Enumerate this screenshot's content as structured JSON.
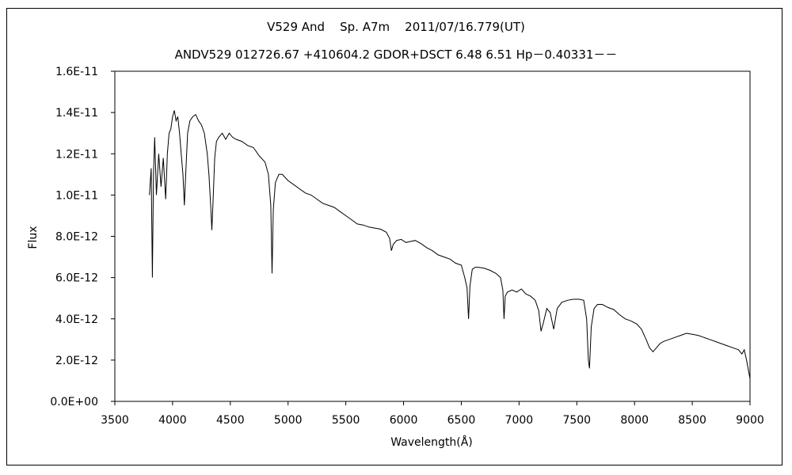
{
  "chart_data": {
    "type": "line",
    "title": "V529 And    Sp. A7m    2011/07/16.779(UT)",
    "subtitle": "ANDV529 012726.67 +410604.2 GDOR+DSCT 6.48 6.51 Hp－0.40331－－",
    "xlabel": "Wavelength(Å)",
    "ylabel": "Flux",
    "xlim": [
      3500,
      9000
    ],
    "ylim": [
      0,
      1.6e-11
    ],
    "x_ticks": [
      "3500",
      "4000",
      "4500",
      "5000",
      "5500",
      "6000",
      "6500",
      "7000",
      "7500",
      "8000",
      "8500",
      "9000"
    ],
    "y_ticks": [
      "0.0E+00",
      "2.0E-12",
      "4.0E-12",
      "6.0E-12",
      "8.0E-12",
      "1.0E-11",
      "1.2E-11",
      "1.4E-11",
      "1.6E-11"
    ],
    "grid": false,
    "legend": "none",
    "series_color": "#000000",
    "series": [
      {
        "x": [
          3800,
          3815,
          3825,
          3835,
          3845,
          3860,
          3880,
          3900,
          3920,
          3940,
          3955,
          3970,
          3985,
          4000,
          4015,
          4030,
          4045,
          4060,
          4075,
          4090,
          4102,
          4115,
          4130,
          4150,
          4175,
          4200,
          4225,
          4250,
          4275,
          4300,
          4315,
          4330,
          4340,
          4350,
          4365,
          4380,
          4400,
          4430,
          4460,
          4490,
          4520,
          4550,
          4600,
          4650,
          4700,
          4750,
          4800,
          4830,
          4850,
          4861,
          4872,
          4890,
          4920,
          4950,
          5000,
          5050,
          5100,
          5150,
          5200,
          5250,
          5300,
          5350,
          5400,
          5450,
          5500,
          5550,
          5600,
          5650,
          5700,
          5750,
          5800,
          5850,
          5880,
          5895,
          5910,
          5940,
          5980,
          6020,
          6060,
          6100,
          6150,
          6200,
          6250,
          6300,
          6350,
          6400,
          6450,
          6500,
          6530,
          6550,
          6563,
          6575,
          6595,
          6620,
          6650,
          6700,
          6750,
          6800,
          6840,
          6860,
          6870,
          6880,
          6900,
          6940,
          6980,
          7020,
          7060,
          7100,
          7140,
          7170,
          7190,
          7210,
          7240,
          7270,
          7300,
          7330,
          7370,
          7420,
          7470,
          7520,
          7560,
          7585,
          7600,
          7610,
          7625,
          7650,
          7680,
          7720,
          7770,
          7820,
          7870,
          7920,
          7970,
          8020,
          8060,
          8100,
          8130,
          8160,
          8190,
          8220,
          8250,
          8300,
          8350,
          8400,
          8450,
          8500,
          8550,
          8600,
          8650,
          8700,
          8750,
          8800,
          8850,
          8900,
          8930,
          8950,
          8970,
          8990,
          9000
        ],
        "y": [
          1e-11,
          1.13e-11,
          6e-12,
          1.1e-11,
          1.28e-11,
          1e-11,
          1.2e-11,
          1.04e-11,
          1.18e-11,
          9.8e-12,
          1.2e-11,
          1.3e-11,
          1.32e-11,
          1.38e-11,
          1.41e-11,
          1.36e-11,
          1.38e-11,
          1.3e-11,
          1.2e-11,
          1.1e-11,
          9.5e-12,
          1.12e-11,
          1.3e-11,
          1.36e-11,
          1.38e-11,
          1.39e-11,
          1.36e-11,
          1.34e-11,
          1.3e-11,
          1.2e-11,
          1.1e-11,
          9.5e-12,
          8.3e-12,
          9.6e-12,
          1.18e-11,
          1.26e-11,
          1.28e-11,
          1.3e-11,
          1.27e-11,
          1.3e-11,
          1.28e-11,
          1.27e-11,
          1.26e-11,
          1.24e-11,
          1.23e-11,
          1.19e-11,
          1.16e-11,
          1.1e-11,
          9.5e-12,
          6.2e-12,
          9.3e-12,
          1.06e-11,
          1.1e-11,
          1.1e-11,
          1.07e-11,
          1.05e-11,
          1.03e-11,
          1.01e-11,
          1e-11,
          9.8e-12,
          9.6e-12,
          9.5e-12,
          9.4e-12,
          9.2e-12,
          9e-12,
          8.8e-12,
          8.6e-12,
          8.55e-12,
          8.45e-12,
          8.4e-12,
          8.35e-12,
          8.2e-12,
          7.9e-12,
          7.3e-12,
          7.6e-12,
          7.8e-12,
          7.85e-12,
          7.7e-12,
          7.75e-12,
          7.8e-12,
          7.65e-12,
          7.45e-12,
          7.3e-12,
          7.1e-12,
          7e-12,
          6.9e-12,
          6.7e-12,
          6.6e-12,
          6e-12,
          5.5e-12,
          4e-12,
          5.6e-12,
          6.4e-12,
          6.5e-12,
          6.5e-12,
          6.45e-12,
          6.35e-12,
          6.2e-12,
          6e-12,
          5.4e-12,
          4e-12,
          5.1e-12,
          5.3e-12,
          5.4e-12,
          5.3e-12,
          5.45e-12,
          5.2e-12,
          5.1e-12,
          4.9e-12,
          4.4e-12,
          3.4e-12,
          3.8e-12,
          4.5e-12,
          4.3e-12,
          3.5e-12,
          4.5e-12,
          4.8e-12,
          4.9e-12,
          4.95e-12,
          4.95e-12,
          4.9e-12,
          4e-12,
          2e-12,
          1.6e-12,
          3.6e-12,
          4.5e-12,
          4.7e-12,
          4.7e-12,
          4.55e-12,
          4.45e-12,
          4.2e-12,
          4e-12,
          3.9e-12,
          3.75e-12,
          3.5e-12,
          3e-12,
          2.6e-12,
          2.4e-12,
          2.6e-12,
          2.8e-12,
          2.9e-12,
          3e-12,
          3.1e-12,
          3.2e-12,
          3.3e-12,
          3.25e-12,
          3.2e-12,
          3.1e-12,
          3e-12,
          2.9e-12,
          2.8e-12,
          2.7e-12,
          2.6e-12,
          2.5e-12,
          2.3e-12,
          2.5e-12,
          2e-12,
          1.4e-12,
          1.1e-12
        ]
      }
    ]
  }
}
